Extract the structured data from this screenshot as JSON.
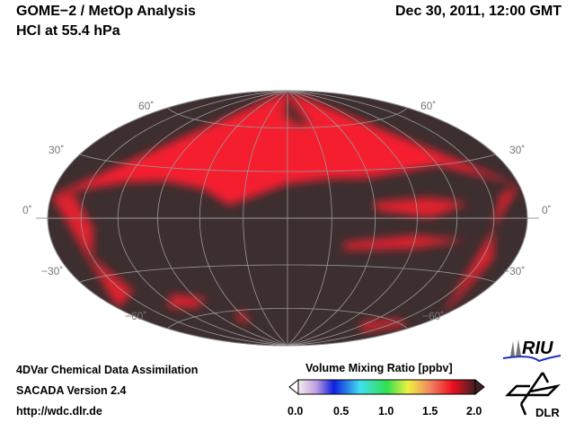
{
  "header": {
    "title": "GOME−2 / MetOp Analysis",
    "subtitle": "HCl at 55.4 hPa",
    "datetime": "Dec 30, 2011, 12:00 GMT"
  },
  "map": {
    "projection": "Hammer",
    "lat_labels": [
      "60˚",
      "30˚",
      "0˚",
      "−30˚",
      "−60˚"
    ],
    "background_color": "#3d2f2f",
    "high_color": "#ff2030"
  },
  "footer": {
    "line1": "4DVar Chemical Data Assimilation",
    "line2": "SACADA Version 2.4",
    "line3": "http://wdc.dlr.de"
  },
  "colorbar": {
    "title": "Volume Mixing Ratio [ppbv]",
    "ticks": [
      "0.0",
      "0.5",
      "1.0",
      "1.5",
      "2.0"
    ],
    "min": 0.0,
    "max": 2.0
  },
  "logos": {
    "riu": "RIU",
    "dlr": "DLR"
  }
}
